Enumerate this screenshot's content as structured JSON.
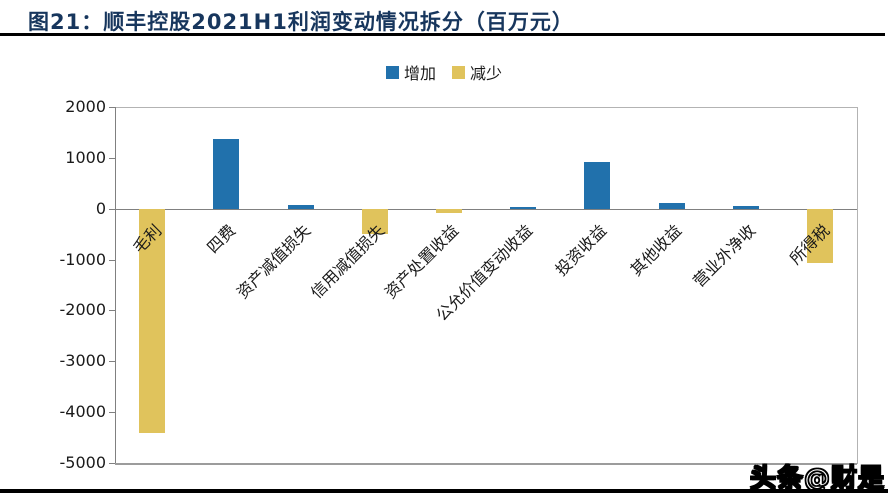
{
  "header": {
    "title": "图21：顺丰控股2021H1利润变动情况拆分（百万元）"
  },
  "watermark": {
    "text": "头条@财是"
  },
  "chart_data": {
    "type": "bar",
    "title": "顺丰控股2021H1利润变动情况拆分",
    "unit": "百万元",
    "categories": [
      "毛利",
      "四费",
      "资产减值损失",
      "信用减值损失",
      "资产处置收益",
      "公允价值变动收益",
      "投资收益",
      "其他收益",
      "营业外净收",
      "所得税"
    ],
    "values": [
      -4400,
      1380,
      80,
      -490,
      -80,
      40,
      920,
      110,
      50,
      -1060
    ],
    "coloring": "by-sign",
    "legend": [
      {
        "label": "增加",
        "color": "#2171AC"
      },
      {
        "label": "减少",
        "color": "#E0C35C"
      }
    ],
    "legend_position": "top-center",
    "ylim": [
      -5000,
      2000
    ],
    "yticks": [
      2000,
      1000,
      0,
      -1000,
      -2000,
      -3000,
      -4000,
      -5000
    ],
    "grid": false
  },
  "colors": {
    "increase": "#2171AC",
    "decrease": "#E0C35C",
    "title": "#17365D",
    "axis": "#808080",
    "plot_border": "#B3B3B3",
    "text": "#1A1A1A"
  }
}
